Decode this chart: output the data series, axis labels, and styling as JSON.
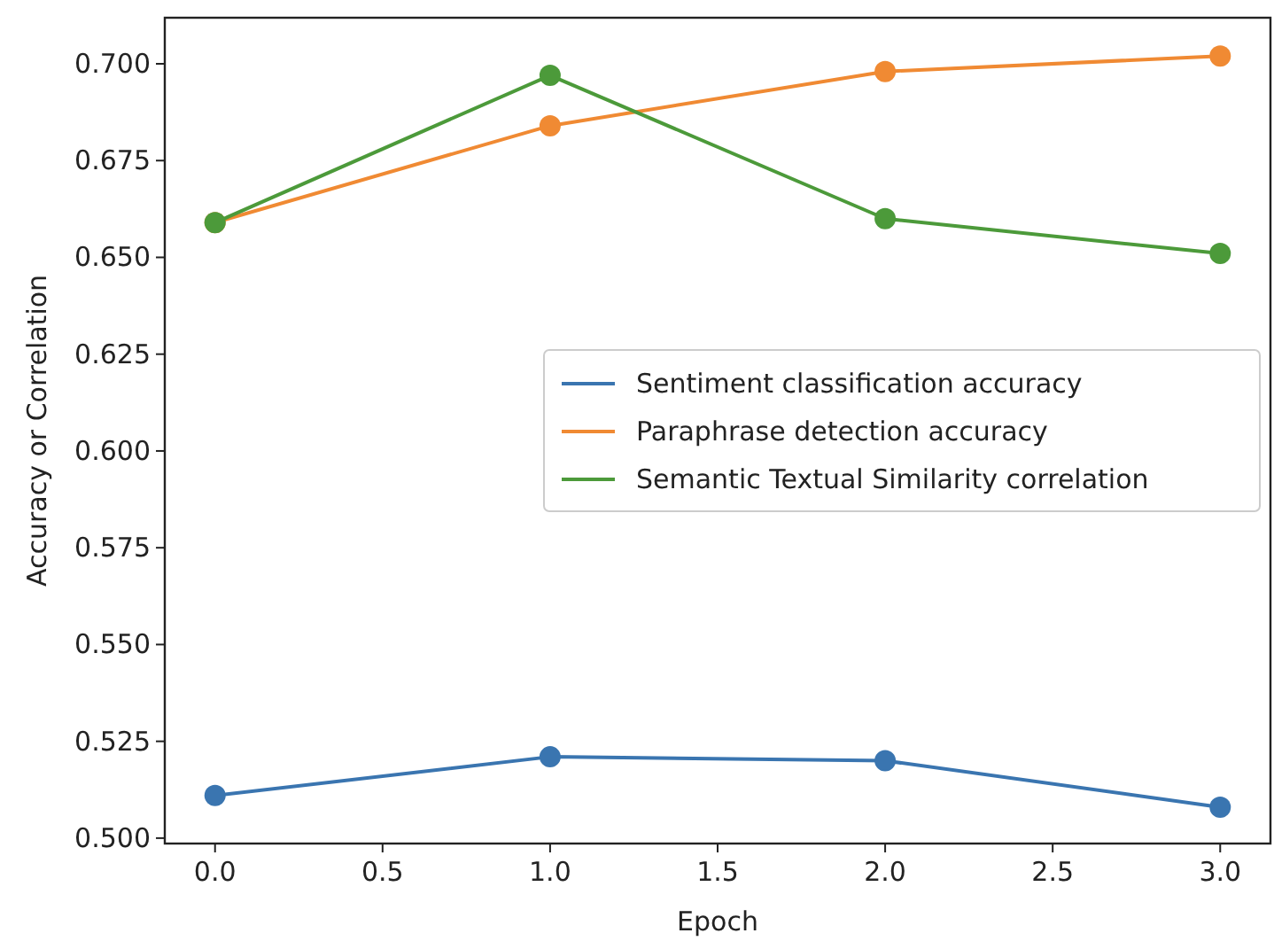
{
  "chart_data": {
    "type": "line",
    "xlabel": "Epoch",
    "ylabel": "Accuracy or Correlation",
    "x": [
      0,
      1,
      2,
      3
    ],
    "xlim": [
      -0.15,
      3.15
    ],
    "xticks": [
      {
        "value": 0,
        "label": "0.0"
      },
      {
        "value": 0.5,
        "label": "0.5"
      },
      {
        "value": 1,
        "label": "1.0"
      },
      {
        "value": 1.5,
        "label": "1.5"
      },
      {
        "value": 2,
        "label": "2.0"
      },
      {
        "value": 2.5,
        "label": "2.5"
      },
      {
        "value": 3,
        "label": "3.0"
      }
    ],
    "ylim": [
      0.4986,
      0.7119
    ],
    "yticks": [
      {
        "value": 0.5,
        "label": "0.500"
      },
      {
        "value": 0.525,
        "label": "0.525"
      },
      {
        "value": 0.55,
        "label": "0.550"
      },
      {
        "value": 0.575,
        "label": "0.575"
      },
      {
        "value": 0.6,
        "label": "0.600"
      },
      {
        "value": 0.625,
        "label": "0.625"
      },
      {
        "value": 0.65,
        "label": "0.650"
      },
      {
        "value": 0.675,
        "label": "0.675"
      },
      {
        "value": 0.7,
        "label": "0.700"
      }
    ],
    "series": [
      {
        "name": "Sentiment classification accuracy",
        "color": "#3a75b0",
        "values": [
          0.511,
          0.521,
          0.52,
          0.508
        ]
      },
      {
        "name": "Paraphrase detection accuracy",
        "color": "#f08a33",
        "values": [
          0.659,
          0.684,
          0.698,
          0.702
        ]
      },
      {
        "name": "Semantic Textual Similarity correlation",
        "color": "#4c9a3a",
        "values": [
          0.659,
          0.697,
          0.66,
          0.651
        ]
      }
    ],
    "marker": "circle",
    "line_style": "solid",
    "legend": "center right",
    "grid": false
  }
}
